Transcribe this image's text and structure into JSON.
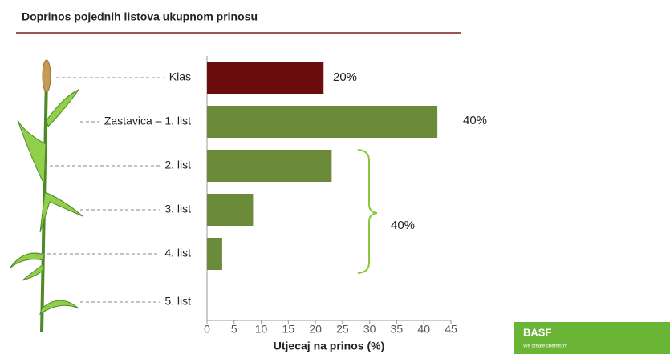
{
  "chart_data": {
    "type": "barh",
    "title": "Doprinos pojednih listova ukupnom prinosu",
    "categories": [
      "Klas",
      "Zastavica – 1. list",
      "2. list",
      "3. list",
      "4. list",
      "5. list"
    ],
    "values": [
      21.5,
      42.5,
      23,
      8.5,
      2.8,
      0
    ],
    "colors": [
      "#6b0d0d",
      "#6b8b3a",
      "#6b8b3a",
      "#6b8b3a",
      "#6b8b3a",
      "#6b8b3a"
    ],
    "xlabel": "Utjecaj na prinos (%)",
    "xlim": [
      0,
      45
    ],
    "xticks": [
      0,
      5,
      10,
      15,
      20,
      25,
      30,
      35,
      40,
      45
    ],
    "annotations": [
      "20%",
      "40%",
      "40%"
    ]
  },
  "logo": {
    "name": "BASF",
    "tagline": "We create chemistry"
  }
}
